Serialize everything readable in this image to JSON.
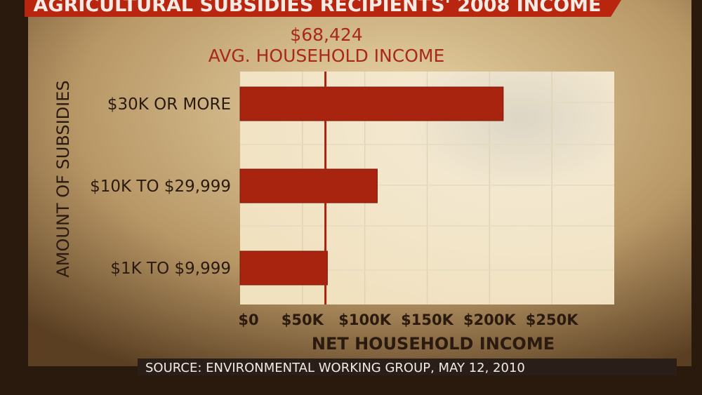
{
  "banner_title": "AGRICULTURAL SUBSIDIES RECIPIENTS' 2008 INCOME",
  "source": "SOURCE: ENVIRONMENTAL WORKING GROUP, MAY 12, 2010",
  "colors": {
    "bar": "#a8240e",
    "banner": "#b8260f",
    "text_dark": "#2a1a10",
    "accent_text": "#a8281a"
  },
  "chart_data": {
    "type": "bar",
    "orientation": "horizontal",
    "categories": [
      "$30K OR MORE",
      "$10K TO $29,999",
      "$1K TO $9,999"
    ],
    "values": [
      211000,
      110000,
      70000
    ],
    "xlabel": "NET HOUSEHOLD INCOME",
    "ylabel": "AMOUNT OF SUBSIDIES",
    "xlim": [
      0,
      300000
    ],
    "xticks": [
      0,
      50000,
      100000,
      150000,
      200000,
      250000
    ],
    "xtick_labels": [
      "$0",
      "$50K",
      "$100K",
      "$150K",
      "$200K",
      "$250K"
    ],
    "grid": true,
    "reference_line": {
      "value": 68424,
      "label_value": "$68,424",
      "label": "AVG. HOUSEHOLD INCOME"
    }
  }
}
